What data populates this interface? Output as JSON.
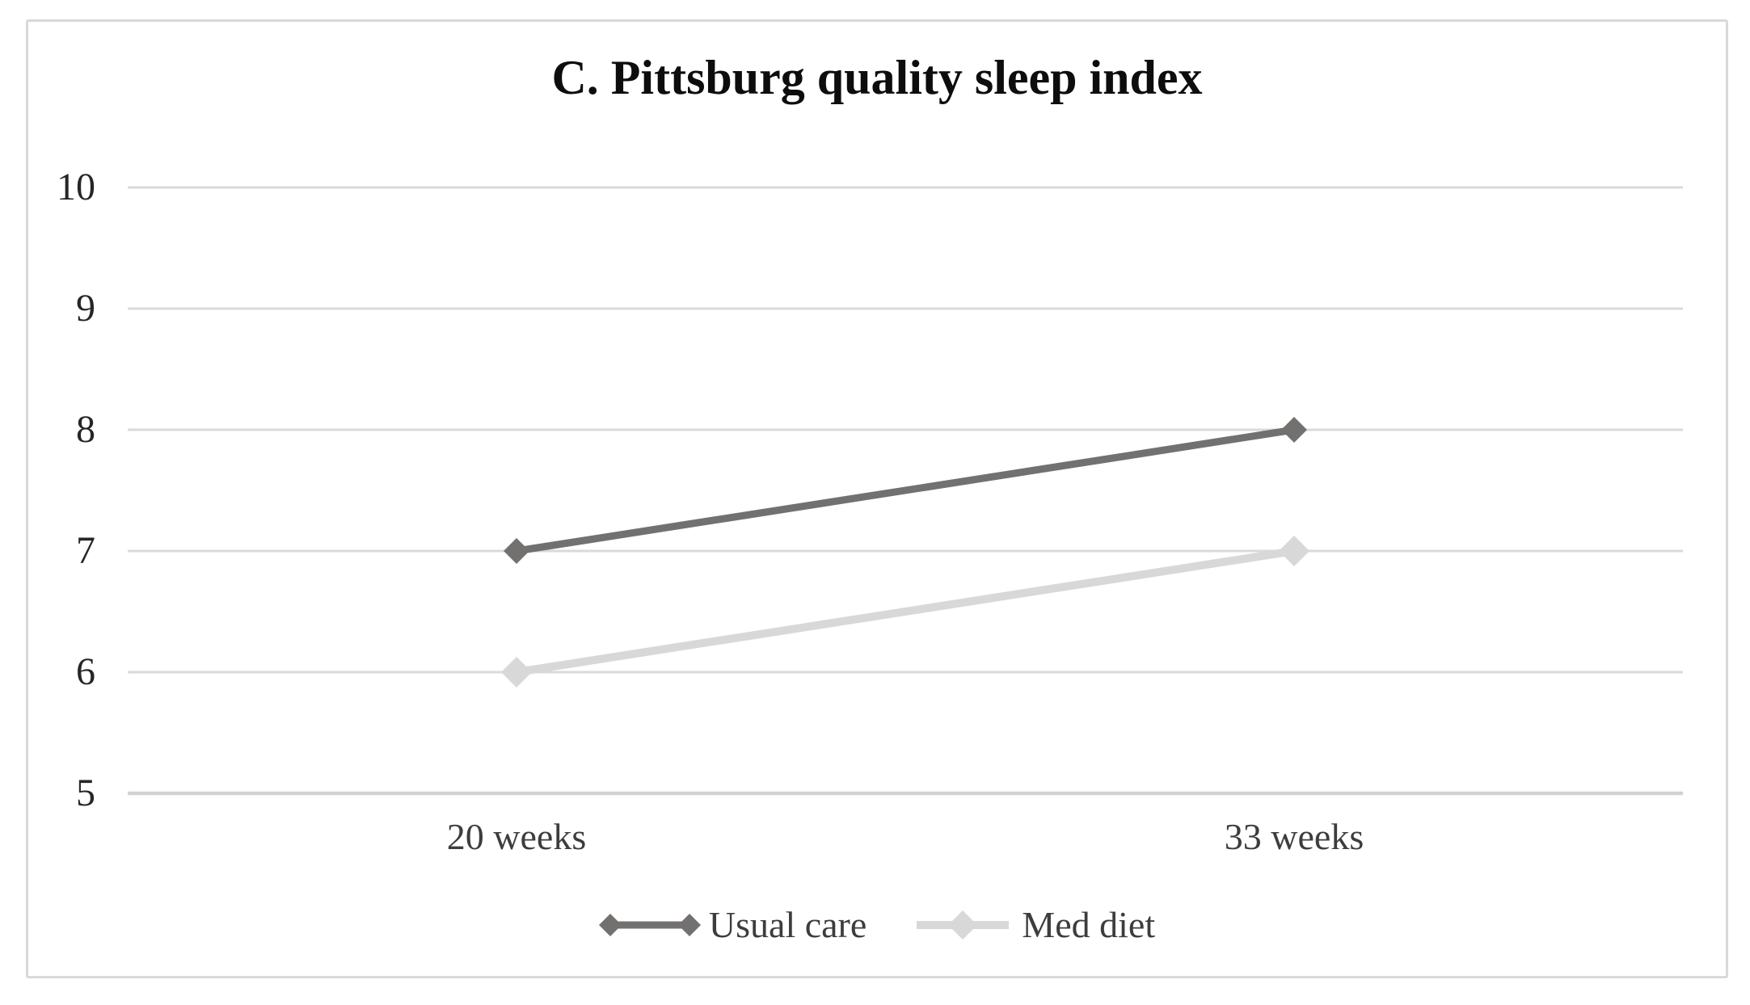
{
  "chart_data": {
    "type": "line",
    "title": "C. Pittsburg quality sleep index",
    "categories": [
      "20 weeks",
      "33 weeks"
    ],
    "series": [
      {
        "name": "Usual care",
        "values": [
          7,
          8
        ],
        "color": "#737070",
        "marker": "diamond",
        "line_width": 9,
        "marker_radius": 16,
        "legend_marker_style": "diamonds-at-ends"
      },
      {
        "name": "Med diet",
        "values": [
          6,
          7
        ],
        "color": "#d8d8d8",
        "marker": "diamond",
        "line_width": 10,
        "marker_radius": 19,
        "legend_marker_style": "diamond-center"
      }
    ],
    "ylim": [
      5,
      10
    ],
    "yticks": [
      5,
      6,
      7,
      8,
      9,
      10
    ],
    "grid": "horizontal",
    "gridline_color": "#dadada",
    "axis_line_color": "#d2d2d2",
    "legend_position": "bottom",
    "frame_border_color": "#d9d9d9",
    "background_color": "#ffffff"
  }
}
